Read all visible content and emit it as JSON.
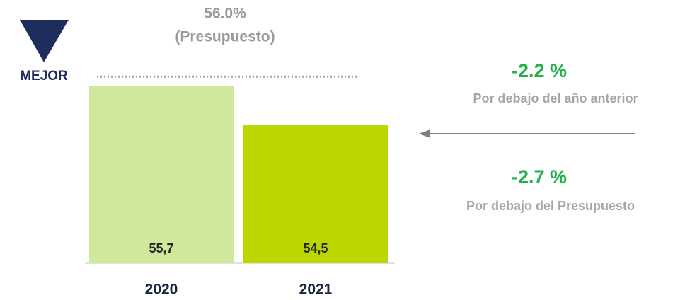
{
  "chart_data": {
    "type": "bar",
    "categories": [
      "2020",
      "2021"
    ],
    "values": [
      55.7,
      54.5
    ],
    "value_labels": [
      "55,7",
      "54,5"
    ],
    "colors": [
      "#cfe89c",
      "#bcd600"
    ],
    "ylim": [
      50.25,
      56.3
    ],
    "reference_line": {
      "value": 56,
      "label": "56.0%",
      "note": "(Presupuesto)"
    },
    "indicator": "MEJOR",
    "annotations": [
      {
        "value": "-2.2 %",
        "text": "Por debajo del año anterior"
      },
      {
        "value": "-2.7 %",
        "text": "Por debajo del Presupuesto"
      }
    ]
  }
}
